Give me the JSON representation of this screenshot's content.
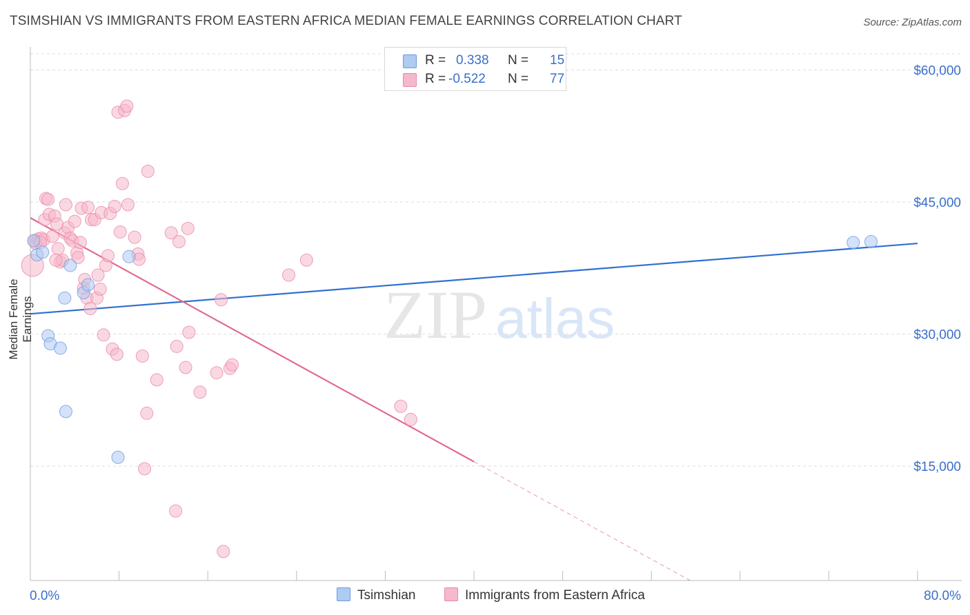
{
  "header": {
    "title": "TSIMSHIAN VS IMMIGRANTS FROM EASTERN AFRICA MEDIAN FEMALE EARNINGS CORRELATION CHART",
    "source": "Source: ZipAtlas.com"
  },
  "watermark": {
    "zip": "ZIP",
    "atlas": "atlas"
  },
  "legend": {
    "rows": [
      {
        "r_label": "R =",
        "r_value": "0.338",
        "n_label": "N =",
        "n_value": "15",
        "color": "#aecbf2"
      },
      {
        "r_label": "R =",
        "r_value": "-0.522",
        "n_label": "N =",
        "n_value": "77",
        "color": "#f6b8cb"
      }
    ]
  },
  "bottom_legend": {
    "series1": "Tsimshian",
    "series2": "Immigrants from Eastern Africa"
  },
  "colors": {
    "blue_fill": "#aecbf2",
    "blue_stroke": "#6a9be0",
    "blue_line": "#2f6fd0",
    "pink_fill": "#f6b8cb",
    "pink_stroke": "#e88aa8",
    "pink_line": "#e06a95",
    "axis_text": "#3a6ecc",
    "grid": "#dddddd"
  },
  "chart_data": {
    "type": "scatter",
    "title": "TSIMSHIAN VS IMMIGRANTS FROM EASTERN AFRICA MEDIAN FEMALE EARNINGS CORRELATION CHART",
    "xlabel": "",
    "ylabel": "Median Female Earnings",
    "xlim": [
      0,
      80
    ],
    "ylim": [
      2000,
      62000
    ],
    "x_tick_labels": [
      "0.0%",
      "80.0%"
    ],
    "y_ticks": [
      {
        "value": 60000,
        "label": "$60,000"
      },
      {
        "value": 45000,
        "label": "$45,000"
      },
      {
        "value": 30000,
        "label": "$30,000"
      },
      {
        "value": 15000,
        "label": "$15,000"
      }
    ],
    "series": [
      {
        "name": "Tsimshian",
        "color": "blue",
        "trend": {
          "x": [
            0,
            80
          ],
          "y": [
            32300,
            40300
          ],
          "solid_until": 80
        },
        "points": [
          [
            0.3,
            40600
          ],
          [
            0.6,
            39000
          ],
          [
            1.1,
            39300
          ],
          [
            1.6,
            29800
          ],
          [
            1.8,
            28900
          ],
          [
            2.7,
            28400
          ],
          [
            3.1,
            34100
          ],
          [
            3.2,
            21200
          ],
          [
            3.6,
            37800
          ],
          [
            4.8,
            34700
          ],
          [
            5.2,
            35600
          ],
          [
            7.9,
            16000
          ],
          [
            8.9,
            38800
          ],
          [
            74.2,
            40400
          ],
          [
            75.8,
            40500
          ]
        ]
      },
      {
        "name": "Immigrants from Eastern Africa",
        "color": "pink",
        "trend": {
          "x": [
            0,
            59.5
          ],
          "y": [
            43200,
            2000
          ],
          "solid_until": 40
        },
        "points": [
          [
            0.2,
            37800
          ],
          [
            0.4,
            40600
          ],
          [
            0.5,
            40300
          ],
          [
            0.7,
            40800
          ],
          [
            1.0,
            40900
          ],
          [
            1.2,
            40700
          ],
          [
            1.3,
            43000
          ],
          [
            1.4,
            45400
          ],
          [
            1.6,
            45300
          ],
          [
            1.7,
            43600
          ],
          [
            2.0,
            41100
          ],
          [
            2.2,
            43400
          ],
          [
            2.4,
            42500
          ],
          [
            2.5,
            39700
          ],
          [
            2.7,
            38200
          ],
          [
            2.9,
            38400
          ],
          [
            3.1,
            41500
          ],
          [
            3.2,
            44700
          ],
          [
            3.4,
            42100
          ],
          [
            3.6,
            40900
          ],
          [
            3.8,
            40600
          ],
          [
            4.0,
            42800
          ],
          [
            4.2,
            39200
          ],
          [
            4.3,
            38700
          ],
          [
            4.5,
            40400
          ],
          [
            4.6,
            44300
          ],
          [
            4.8,
            35200
          ],
          [
            4.9,
            36200
          ],
          [
            5.1,
            34100
          ],
          [
            5.2,
            44400
          ],
          [
            5.4,
            32900
          ],
          [
            5.5,
            43000
          ],
          [
            5.8,
            43000
          ],
          [
            6.0,
            34100
          ],
          [
            6.1,
            36700
          ],
          [
            6.3,
            35100
          ],
          [
            6.4,
            43800
          ],
          [
            6.6,
            29900
          ],
          [
            6.8,
            37800
          ],
          [
            7.0,
            38900
          ],
          [
            7.2,
            43700
          ],
          [
            7.4,
            28300
          ],
          [
            7.6,
            44500
          ],
          [
            7.8,
            27700
          ],
          [
            7.9,
            55200
          ],
          [
            8.1,
            41600
          ],
          [
            8.3,
            47100
          ],
          [
            8.5,
            55400
          ],
          [
            8.7,
            55900
          ],
          [
            8.8,
            44700
          ],
          [
            9.4,
            41000
          ],
          [
            9.7,
            39100
          ],
          [
            9.8,
            38500
          ],
          [
            10.1,
            27500
          ],
          [
            10.3,
            14700
          ],
          [
            10.5,
            21000
          ],
          [
            10.6,
            48500
          ],
          [
            11.4,
            24800
          ],
          [
            12.7,
            41500
          ],
          [
            13.1,
            9900
          ],
          [
            13.2,
            28600
          ],
          [
            13.4,
            40500
          ],
          [
            14.0,
            26200
          ],
          [
            14.2,
            42000
          ],
          [
            14.3,
            30200
          ],
          [
            15.3,
            23400
          ],
          [
            16.8,
            25600
          ],
          [
            17.2,
            33900
          ],
          [
            17.4,
            5300
          ],
          [
            18.0,
            26100
          ],
          [
            18.2,
            26500
          ],
          [
            23.3,
            36700
          ],
          [
            24.9,
            38400
          ],
          [
            33.4,
            21800
          ],
          [
            34.3,
            20300
          ],
          [
            2.3,
            38400
          ],
          [
            0.9,
            40400
          ]
        ]
      }
    ]
  }
}
